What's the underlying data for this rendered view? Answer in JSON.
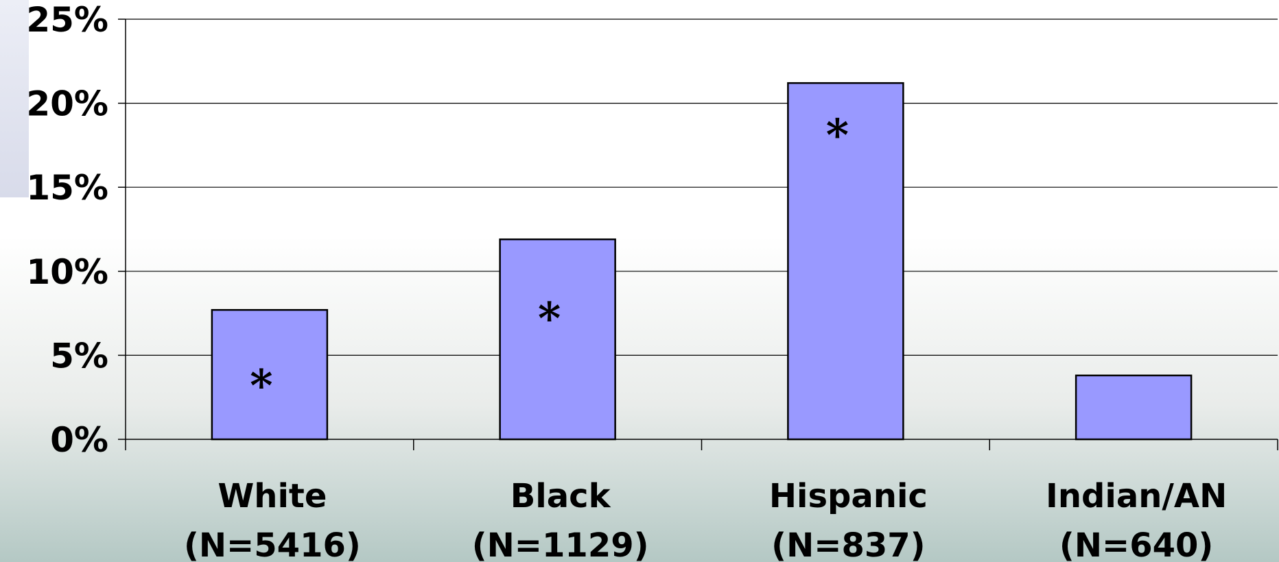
{
  "chart_data": {
    "type": "bar",
    "title": "",
    "xlabel": "",
    "ylabel": "",
    "ylim": [
      0,
      25
    ],
    "y_tick_values": [
      0,
      5,
      10,
      15,
      20,
      25
    ],
    "y_tick_labels": [
      "0%",
      "5%",
      "10%",
      "15%",
      "20%",
      "25%"
    ],
    "categories": [
      "White",
      "Black",
      "Hispanic",
      "Indian/AN"
    ],
    "category_counts": [
      "(N=5416)",
      "(N=1129)",
      "(N=837)",
      "(N=640)"
    ],
    "values": [
      7.7,
      11.9,
      21.2,
      3.8
    ],
    "annotations": [
      "*",
      "*",
      "*",
      ""
    ],
    "annotation_values": [
      3.2,
      7.2,
      18.1,
      null
    ],
    "bar_color": "#9999ff",
    "bar_edge_color": "#000000",
    "grid": true,
    "legend": "none"
  }
}
